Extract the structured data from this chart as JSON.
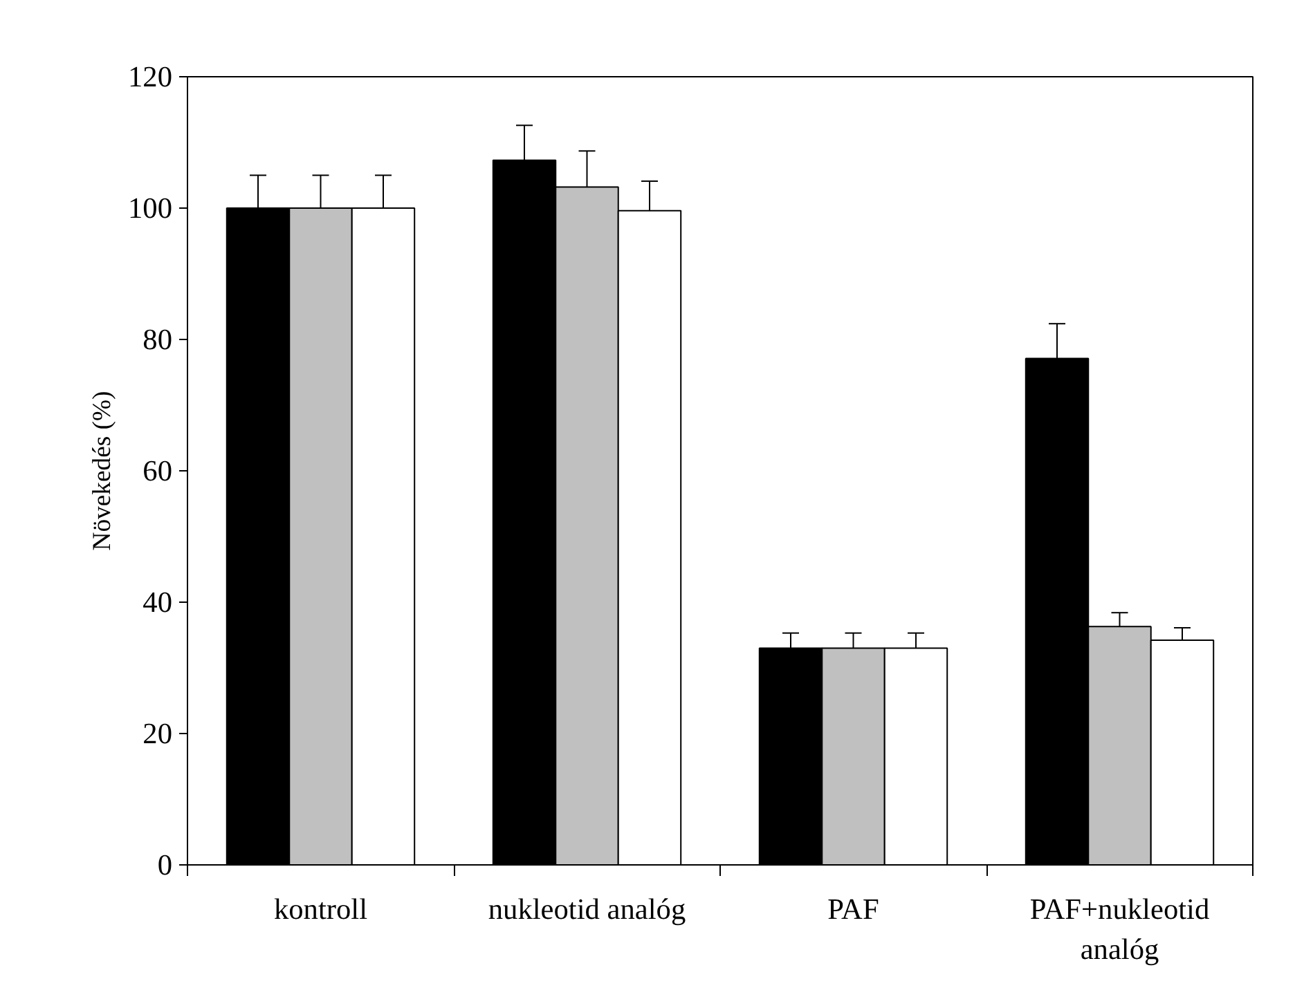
{
  "chart_data": {
    "type": "bar",
    "ylabel": "Növekedés (%)",
    "categories": [
      "kontroll",
      "nukleotid analóg",
      "PAF",
      "PAF+nukleotid analóg"
    ],
    "series": [
      {
        "color": "#000000",
        "values": [
          100,
          107.3,
          33,
          77.1
        ],
        "errors": [
          [
            100,
            105
          ],
          [
            107.3,
            112.6
          ],
          [
            33,
            35.3
          ],
          [
            77.1,
            82.4
          ]
        ]
      },
      {
        "color": "#c0c0c0",
        "values": [
          100,
          103.2,
          33,
          36.3
        ],
        "errors": [
          [
            100,
            105
          ],
          [
            103.2,
            108.7
          ],
          [
            33,
            35.3
          ],
          [
            36.3,
            38.4
          ]
        ]
      },
      {
        "color": "#ffffff",
        "values": [
          100,
          99.6,
          33,
          34.2
        ],
        "errors": [
          [
            100,
            105
          ],
          [
            99.6,
            104.1
          ],
          [
            33,
            35.3
          ],
          [
            34.2,
            36.1
          ]
        ]
      }
    ],
    "ylim": [
      0,
      120
    ],
    "yticks": [
      0,
      20,
      40,
      60,
      80,
      100,
      120
    ],
    "grid": false
  }
}
